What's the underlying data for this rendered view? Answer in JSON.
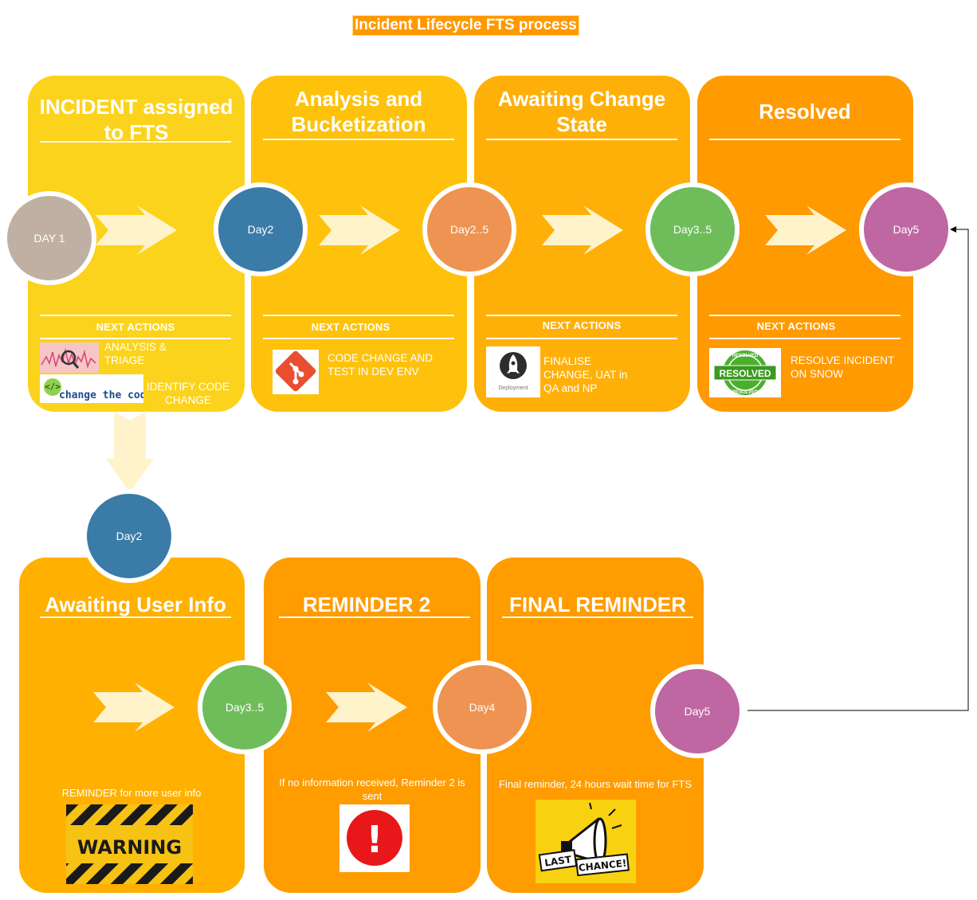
{
  "title": "Incident Lifecycle FTS process",
  "stages": [
    {
      "title": "INCIDENT assigned to FTS",
      "day": "DAY 1",
      "next_actions": "NEXT ACTIONS",
      "action1": "ANALYSIS & TRIAGE",
      "action2": "IDENTIFY CODE CHANGE",
      "logo_text": "change the code",
      "color": "#fcd31c"
    },
    {
      "title": "Analysis and Bucketization",
      "day": "Day2",
      "next_actions": "NEXT ACTIONS",
      "action1": "CODE CHANGE AND TEST IN DEV ENV",
      "color": "#fec20c"
    },
    {
      "title": "Awaiting Change State",
      "day": "Day2..5",
      "next_actions": "NEXT ACTIONS",
      "action1": "FINALISE CHANGE, UAT in QA and NP",
      "logo_text": "Deployment",
      "color": "#ffb008"
    },
    {
      "title": "Resolved",
      "day": "Day3..5",
      "end_day": "Day5",
      "next_actions": "NEXT ACTIONS",
      "action1": "RESOLVE INCIDENT ON SNOW",
      "stamp_text": "RESOLVED",
      "stamp_ring": "RESOLVED",
      "color": "#ff9a00"
    }
  ],
  "branch_day": "Day2",
  "lower_stages": [
    {
      "title": "Awaiting User Info",
      "day": "Day3..5",
      "caption": "REMINDER for more user info",
      "sign_text": "WARNING",
      "color": "#ffb000"
    },
    {
      "title": "REMINDER 2",
      "day": "Day4",
      "caption": "If no information received, Reminder 2 is sent",
      "icon_text": "!",
      "color": "#ff9c00"
    },
    {
      "title": "FINAL REMINDER",
      "day": "Day5",
      "caption": "Final reminder, 24 hours wait time for FTS",
      "badge_word1": "LAST",
      "badge_word2": "CHANCE!",
      "color": "#ff9c00"
    }
  ],
  "colors": {
    "day1": "#bfb0a3",
    "blue": "#3a7ba8",
    "orange": "#ee9351",
    "green": "#6ebd5a",
    "pink": "#bf67a3",
    "arrow": "#fff3cc"
  }
}
